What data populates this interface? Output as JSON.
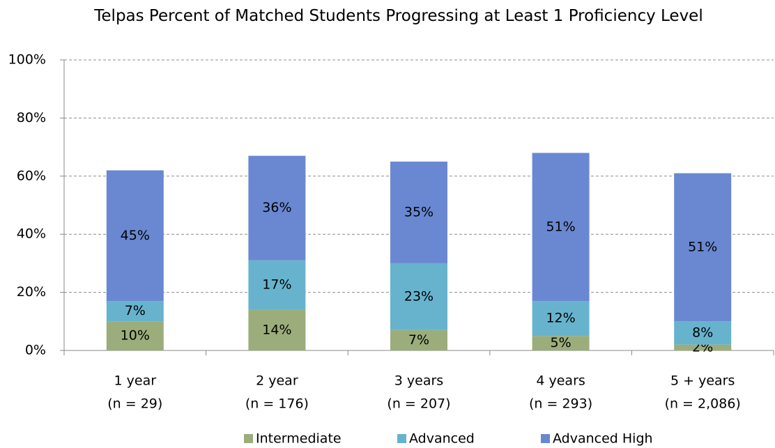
{
  "chart_data": {
    "type": "stacked_bar",
    "title": "Telpas Percent of Matched Students Progressing at Least 1 Proficiency Level",
    "categories": [
      [
        "1 year",
        "(n = 29)"
      ],
      [
        "2 year",
        "(n = 176)"
      ],
      [
        "3 years",
        "(n = 207)"
      ],
      [
        "4 years",
        "(n = 293)"
      ],
      [
        "5 + years",
        "(n = 2,086)"
      ]
    ],
    "series": [
      {
        "name": "Intermediate",
        "color": "#9bad7b",
        "values": [
          10,
          14,
          7,
          5,
          2
        ],
        "value_labels": [
          "10%",
          "14%",
          "7%",
          "5%",
          "2%"
        ]
      },
      {
        "name": "Advanced",
        "color": "#67b3cd",
        "values": [
          7,
          17,
          23,
          12,
          8
        ],
        "value_labels": [
          "7%",
          "17%",
          "23%",
          "12%",
          "8%"
        ]
      },
      {
        "name": "Advanced High",
        "color": "#6a88d1",
        "values": [
          45,
          36,
          35,
          51,
          51
        ],
        "value_labels": [
          "45%",
          "36%",
          "35%",
          "51%",
          "51%"
        ]
      }
    ],
    "ylim": [
      0,
      100
    ],
    "yticks": [
      {
        "value": 0,
        "label": "0%"
      },
      {
        "value": 20,
        "label": "20%"
      },
      {
        "value": 40,
        "label": "40%"
      },
      {
        "value": 60,
        "label": "60%"
      },
      {
        "value": 80,
        "label": "80%"
      },
      {
        "value": 100,
        "label": "100%"
      }
    ],
    "grid": true,
    "legend": "bottom"
  }
}
